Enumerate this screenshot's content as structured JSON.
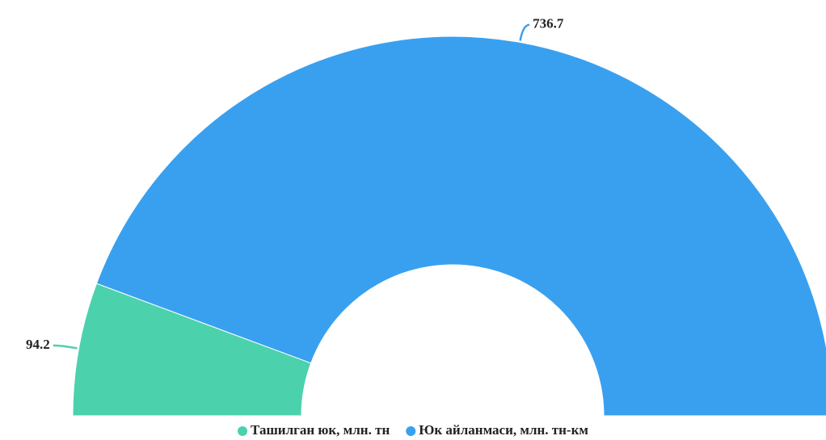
{
  "chart_data": {
    "type": "pie",
    "donut": true,
    "half": true,
    "series": [
      {
        "name": "Ташилган юк, млн. тн",
        "color": "#4cd1ad",
        "values": [
          94.2
        ]
      },
      {
        "name": "Юк айланмаси, млн. тн-км",
        "color": "#39a0ef",
        "values": [
          736.7
        ]
      }
    ]
  }
}
